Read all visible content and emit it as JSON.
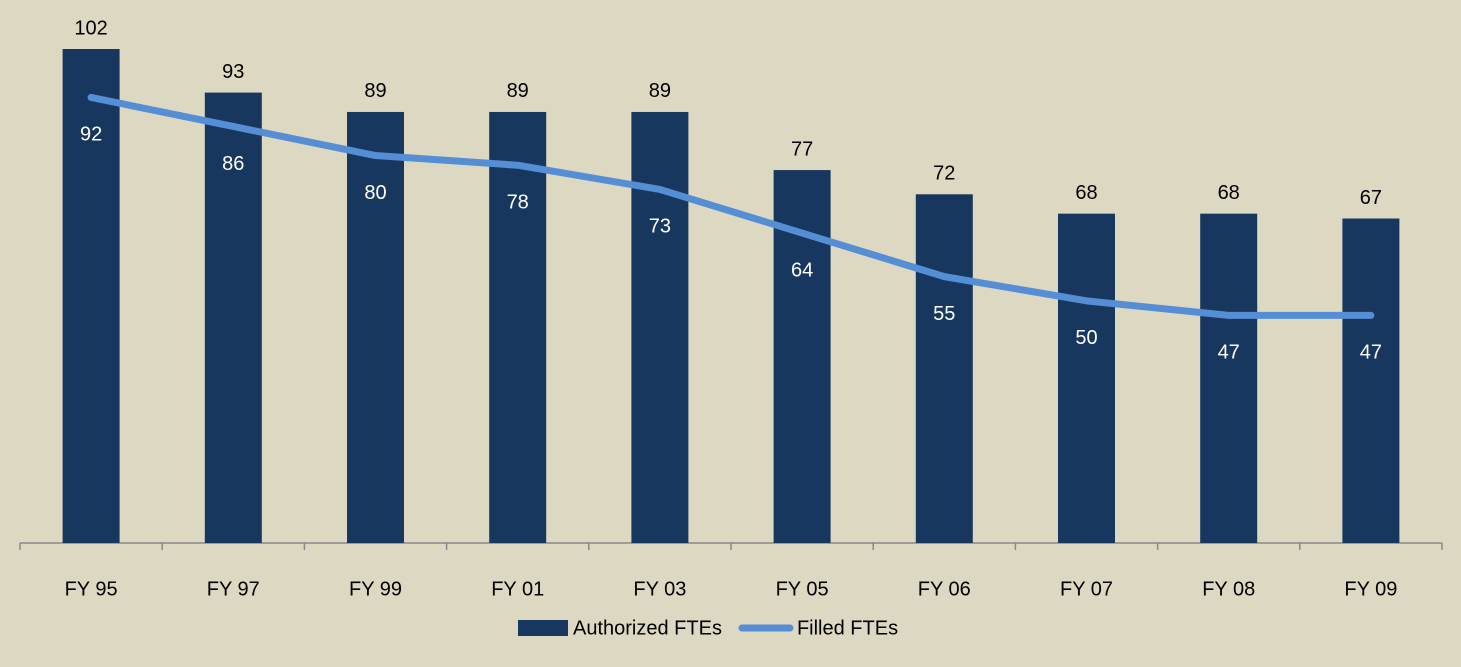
{
  "chart_data": {
    "type": "bar",
    "categories": [
      "FY 95",
      "FY 97",
      "FY 99",
      "FY 01",
      "FY 03",
      "FY 05",
      "FY 06",
      "FY 07",
      "FY 08",
      "FY 09"
    ],
    "series": [
      {
        "name": "Authorized FTEs",
        "type": "bar",
        "color": "#17375e",
        "values": [
          102,
          93,
          89,
          89,
          89,
          77,
          72,
          68,
          68,
          67
        ]
      },
      {
        "name": "Filled FTEs",
        "type": "line",
        "color": "#558ed5",
        "values": [
          92,
          86,
          80,
          78,
          73,
          64,
          55,
          50,
          47,
          47
        ]
      }
    ],
    "legend": "bottom"
  }
}
